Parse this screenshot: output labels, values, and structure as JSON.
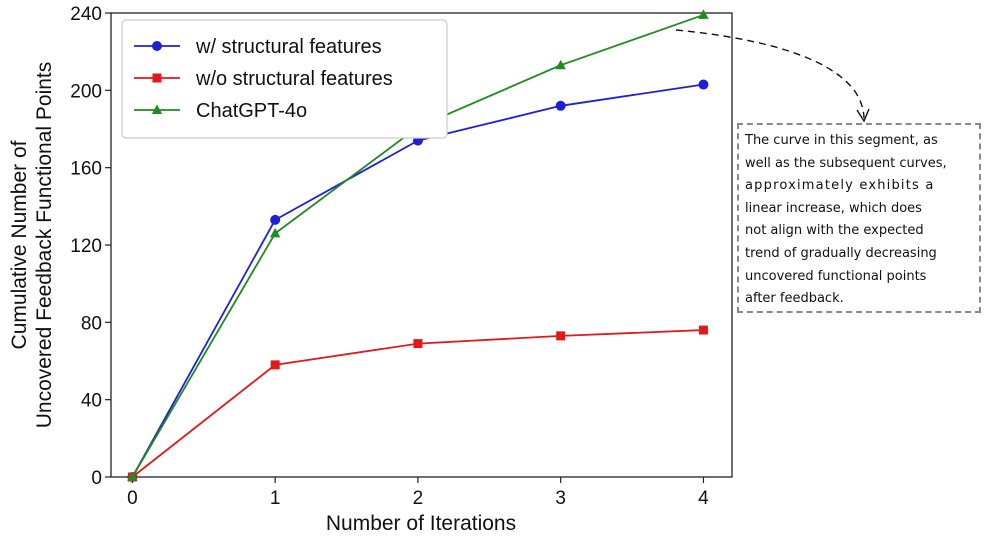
{
  "chart_data": {
    "type": "line",
    "x": [
      0,
      1,
      2,
      3,
      4
    ],
    "xticks": [
      "0",
      "1",
      "2",
      "3",
      "4"
    ],
    "yticks": [
      "0",
      "40",
      "80",
      "120",
      "160",
      "200",
      "240"
    ],
    "xlim": [
      -0.15,
      4.2
    ],
    "ylim": [
      0,
      240
    ],
    "xlabel": "Number of Iterations",
    "ylabel_lines": [
      "Cumulative Number of",
      "Uncovered Feedback Functional Points"
    ],
    "legend_position": "top-left",
    "series": [
      {
        "name": "w/ structural features",
        "values": [
          0,
          133,
          174,
          192,
          203
        ],
        "color": "#1f1fd6",
        "marker": "circle"
      },
      {
        "name": "w/o structural features",
        "values": [
          0,
          58,
          69,
          73,
          76
        ],
        "color": "#e01a1a",
        "marker": "square"
      },
      {
        "name": "ChatGPT-4o",
        "values": [
          0,
          126,
          181,
          213,
          239
        ],
        "color": "#1e8c1e",
        "marker": "triangle"
      }
    ],
    "annotation": {
      "lines": [
        "The curve in this segment, as",
        "well as the subsequent curves,",
        "approximately exhibits a",
        "linear increase, which does",
        "not align with the expected",
        "trend of gradually decreasing",
        "uncovered functional points",
        "after feedback."
      ]
    }
  }
}
